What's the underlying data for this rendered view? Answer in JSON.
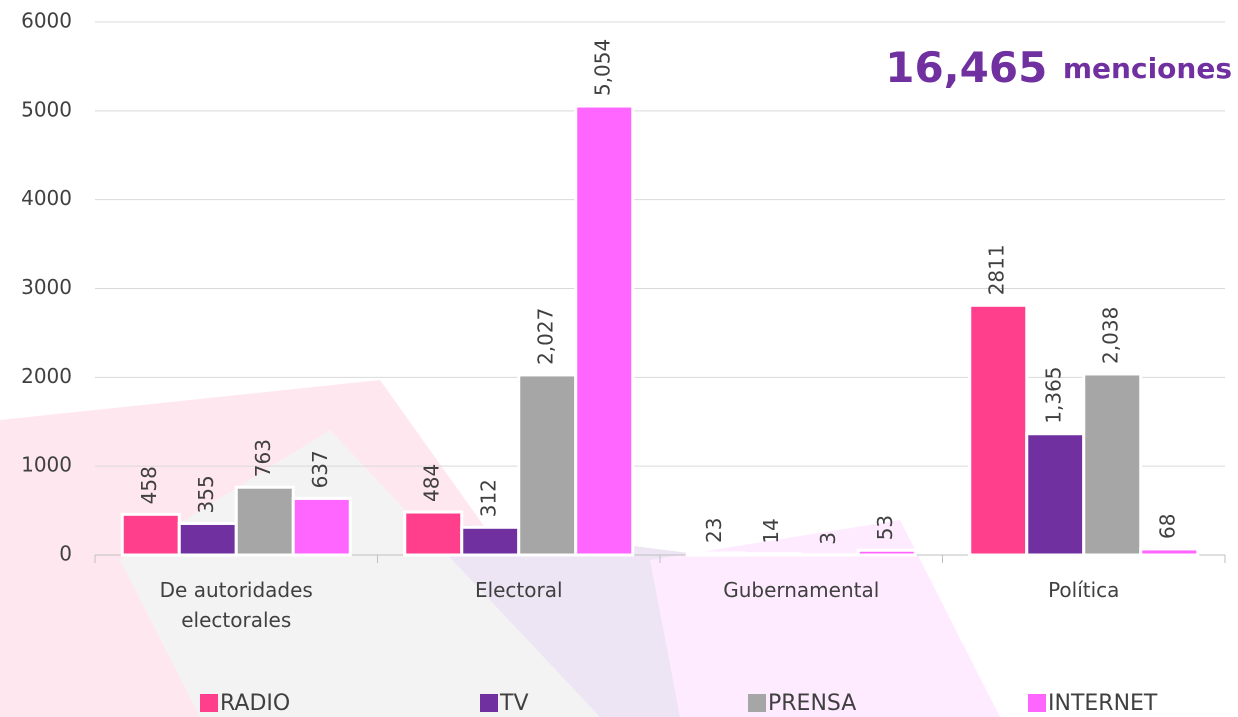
{
  "chart_data": {
    "type": "bar",
    "annotation": {
      "number": "16,465",
      "text": "menciones"
    },
    "categories": [
      "De autoridades electorales",
      "Electoral",
      "Gubernamental",
      "Política"
    ],
    "series": [
      {
        "name": "RADIO",
        "color": "#ff3f8c",
        "values": [
          458,
          484,
          23,
          2811
        ]
      },
      {
        "name": "TV",
        "color": "#7030a0",
        "values": [
          355,
          312,
          14,
          1365
        ],
        "value_labels": [
          "355",
          "312",
          "14",
          "1,365"
        ]
      },
      {
        "name": "PRENSA",
        "color": "#a6a6a6",
        "values": [
          763,
          2027,
          3,
          2038
        ],
        "value_labels": [
          "763",
          "2,027",
          "3",
          "2,038"
        ]
      },
      {
        "name": "INTERNET",
        "color": "#ff66ff",
        "values": [
          637,
          5054,
          53,
          68
        ],
        "value_labels": [
          "637",
          "5,054",
          "53",
          "68"
        ]
      }
    ],
    "ylim": [
      0,
      6000
    ],
    "yticks": [
      0,
      1000,
      2000,
      3000,
      4000,
      5000,
      6000
    ],
    "grid": true,
    "legend": "bottom"
  }
}
